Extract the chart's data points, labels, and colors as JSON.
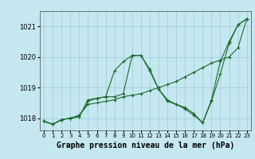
{
  "title": "",
  "xlabel": "Graphe pression niveau de la mer (hPa)",
  "background_color": "#c5e8f0",
  "grid_color": "#9dc8d8",
  "line_color": "#1a6b2a",
  "xlim": [
    -0.5,
    23.5
  ],
  "ylim": [
    1017.6,
    1021.5
  ],
  "yticks": [
    1018,
    1019,
    1020,
    1021
  ],
  "xticks": [
    0,
    1,
    2,
    3,
    4,
    5,
    6,
    7,
    8,
    9,
    10,
    11,
    12,
    13,
    14,
    15,
    16,
    17,
    18,
    19,
    20,
    21,
    22,
    23
  ],
  "line1_x": [
    0,
    1,
    2,
    3,
    4,
    5,
    6,
    7,
    8,
    9,
    10,
    11,
    12,
    13,
    14,
    15,
    16,
    17,
    18,
    19,
    20,
    21,
    22,
    23
  ],
  "line1_y": [
    1017.9,
    1017.8,
    1017.95,
    1018.0,
    1018.05,
    1018.6,
    1018.65,
    1018.7,
    1019.55,
    1019.85,
    1020.05,
    1020.05,
    1019.6,
    1018.95,
    1018.6,
    1018.45,
    1018.35,
    1018.15,
    1017.85,
    1018.6,
    1019.85,
    1020.5,
    1021.05,
    1021.25
  ],
  "line2_x": [
    0,
    1,
    2,
    3,
    4,
    5,
    6,
    7,
    8,
    9,
    10,
    11,
    12,
    13,
    14,
    15,
    16,
    17,
    18,
    19,
    20,
    21,
    22,
    23
  ],
  "line2_y": [
    1017.9,
    1017.8,
    1017.95,
    1018.0,
    1018.1,
    1018.45,
    1018.5,
    1018.55,
    1018.6,
    1018.7,
    1018.75,
    1018.8,
    1018.9,
    1019.0,
    1019.1,
    1019.2,
    1019.35,
    1019.5,
    1019.65,
    1019.8,
    1019.9,
    1020.0,
    1020.3,
    1021.25
  ],
  "line3_x": [
    0,
    1,
    2,
    3,
    4,
    5,
    6,
    7,
    8,
    9,
    10,
    11,
    12,
    13,
    14,
    15,
    16,
    17,
    18,
    19,
    20,
    21,
    22,
    23
  ],
  "line3_y": [
    1017.9,
    1017.8,
    1017.95,
    1018.0,
    1018.05,
    1018.55,
    1018.65,
    1018.7,
    1018.7,
    1018.8,
    1020.05,
    1020.05,
    1019.55,
    1018.95,
    1018.55,
    1018.45,
    1018.3,
    1018.1,
    1017.85,
    1018.55,
    1019.45,
    1020.45,
    1021.05,
    1021.25
  ],
  "marker": "+",
  "markersize": 3,
  "linewidth": 0.8,
  "xlabel_fontsize": 7,
  "ytick_fontsize": 6,
  "xtick_fontsize": 5
}
